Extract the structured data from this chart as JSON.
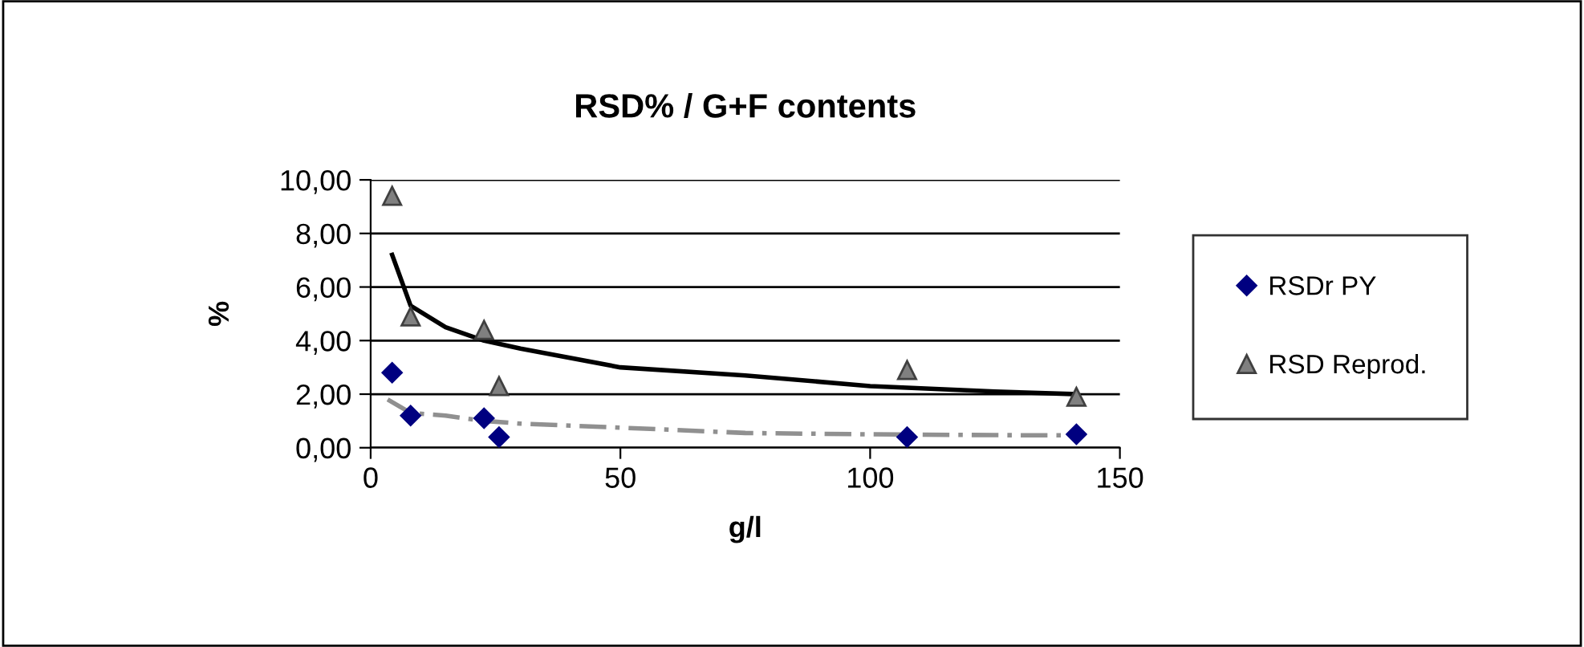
{
  "chart_data": {
    "type": "scatter",
    "title": "RSD% / G+F contents",
    "xlabel": "g/l",
    "ylabel": "%",
    "xlim": [
      0,
      150
    ],
    "xticks": [
      0,
      50,
      100,
      150
    ],
    "ylim": [
      0,
      10
    ],
    "yticks": [
      {
        "value": 0,
        "label": "0,00"
      },
      {
        "value": 2,
        "label": "2,00"
      },
      {
        "value": 4,
        "label": "4,00"
      },
      {
        "value": 6,
        "label": "6,00"
      },
      {
        "value": 8,
        "label": "8,00"
      },
      {
        "value": 10,
        "label": "10,00"
      }
    ],
    "grid": "y",
    "legend": "right",
    "series": [
      {
        "name": "RSDr PY",
        "color": "#000080",
        "marker": "diamond",
        "x": [
          4.3,
          8.0,
          22.7,
          25.7,
          107.4,
          141.3
        ],
        "values": [
          2.8,
          1.2,
          1.1,
          0.4,
          0.4,
          0.5
        ]
      },
      {
        "name": "RSD Reprod.",
        "color": "#808080",
        "marker": "triangle",
        "x": [
          4.3,
          8.0,
          22.7,
          25.7,
          107.4,
          141.3
        ],
        "values": [
          9.4,
          4.9,
          4.4,
          2.3,
          2.9,
          1.9
        ]
      },
      {
        "type": "line",
        "color": "#000000",
        "marker": "none",
        "line_style": "solid",
        "x": [
          4.3,
          8,
          15,
          22.7,
          30,
          50,
          75,
          100,
          125,
          141.3
        ],
        "values": [
          7.2,
          5.3,
          4.5,
          4.0,
          3.7,
          3.0,
          2.7,
          2.3,
          2.1,
          2.0
        ]
      },
      {
        "type": "line",
        "color": "#909090",
        "marker": "none",
        "line_style": "dashed",
        "x": [
          3.4,
          8,
          15,
          22.7,
          30,
          50,
          75,
          100,
          125,
          141.3
        ],
        "values": [
          1.8,
          1.3,
          1.2,
          1.0,
          0.9,
          0.75,
          0.55,
          0.5,
          0.47,
          0.46
        ]
      }
    ]
  }
}
